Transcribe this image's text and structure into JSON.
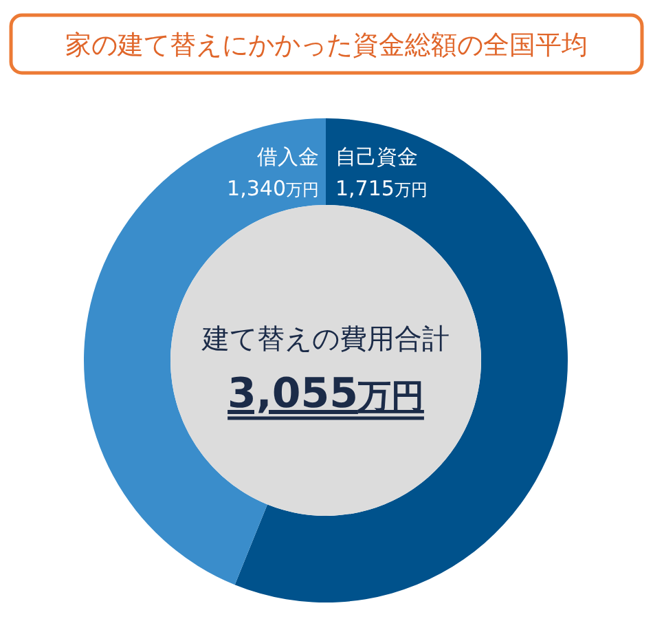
{
  "chart_data": {
    "type": "donut",
    "title": "家の建て替えにかかった資金総額の全国平均",
    "categories": [
      "自己資金",
      "借入金"
    ],
    "values": [
      1715,
      1340
    ],
    "colors": [
      "#00528c",
      "#3a8dcb"
    ],
    "value_labels": [
      "1,715万円",
      "1,340万円"
    ],
    "annotations": [
      "建て替えの費用合計",
      "3,055万円"
    ]
  }
}
